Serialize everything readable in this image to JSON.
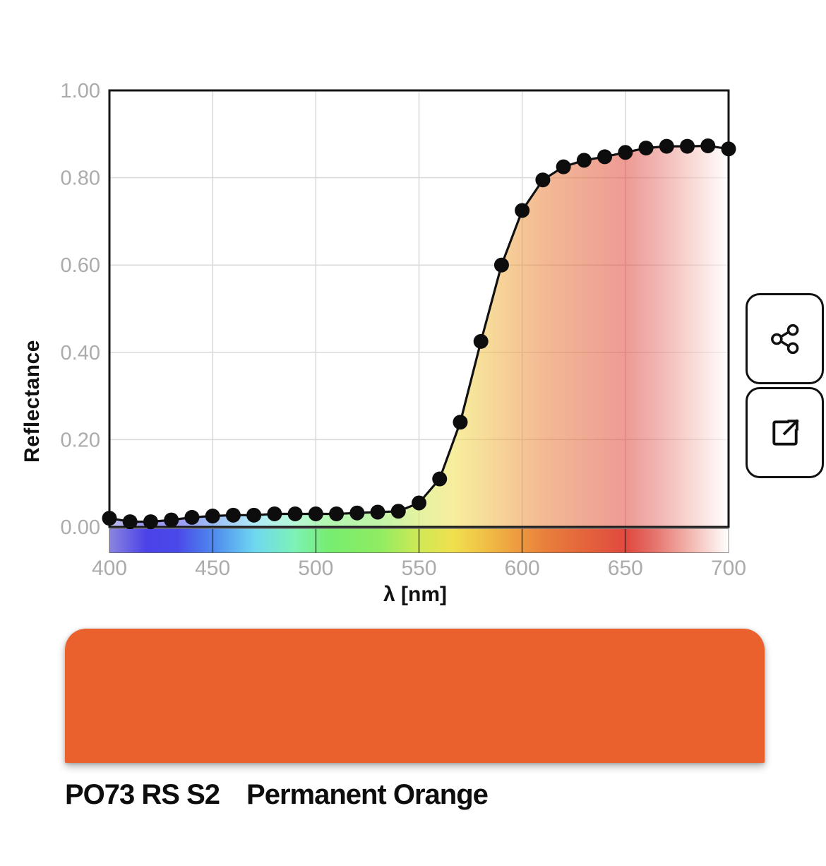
{
  "figure": {
    "ylabel": "Reflectance",
    "xlabel": "λ [nm]"
  },
  "chart_data": {
    "type": "line",
    "title": "",
    "xlabel": "λ [nm]",
    "ylabel": "Reflectance",
    "xlim": [
      400,
      700
    ],
    "ylim": [
      0,
      1
    ],
    "grid": true,
    "legend": "none",
    "x_ticks": [
      400,
      450,
      500,
      550,
      600,
      650,
      700
    ],
    "y_ticks": [
      "0.00",
      "0.20",
      "0.40",
      "0.60",
      "0.80",
      "1.00"
    ],
    "x": [
      400,
      410,
      420,
      430,
      440,
      450,
      460,
      470,
      480,
      490,
      500,
      510,
      520,
      530,
      540,
      550,
      560,
      570,
      580,
      590,
      600,
      610,
      620,
      630,
      640,
      650,
      660,
      670,
      680,
      690,
      700
    ],
    "y": [
      0.02,
      0.012,
      0.012,
      0.016,
      0.022,
      0.025,
      0.027,
      0.027,
      0.03,
      0.03,
      0.03,
      0.03,
      0.032,
      0.034,
      0.036,
      0.055,
      0.11,
      0.24,
      0.425,
      0.6,
      0.725,
      0.795,
      0.825,
      0.84,
      0.848,
      0.858,
      0.868,
      0.872,
      0.872,
      0.873,
      0.866
    ],
    "line_color": "#111111",
    "marker": "filled-circle",
    "marker_color": "#0d0d0d",
    "area_fill": "visible-spectrum-gradient",
    "area_fill_opacity": 0.55,
    "grid_color": "#d9d9d9",
    "tick_label_color": "#ababab",
    "spectrum_stops": [
      {
        "o": 0.0,
        "c": "#8a85e0"
      },
      {
        "o": 0.06,
        "c": "#4b42e8"
      },
      {
        "o": 0.11,
        "c": "#4a49e8"
      },
      {
        "o": 0.17,
        "c": "#4f8cee"
      },
      {
        "o": 0.235,
        "c": "#6fd8f0"
      },
      {
        "o": 0.3,
        "c": "#7df2b5"
      },
      {
        "o": 0.355,
        "c": "#77ed70"
      },
      {
        "o": 0.435,
        "c": "#8fec62"
      },
      {
        "o": 0.5,
        "c": "#cfe955"
      },
      {
        "o": 0.555,
        "c": "#f0e04e"
      },
      {
        "o": 0.6,
        "c": "#f0c447"
      },
      {
        "o": 0.655,
        "c": "#ee9e40"
      },
      {
        "o": 0.705,
        "c": "#e87f3c"
      },
      {
        "o": 0.77,
        "c": "#e4633c"
      },
      {
        "o": 0.835,
        "c": "#e0493f"
      },
      {
        "o": 0.88,
        "c": "#e4736c"
      },
      {
        "o": 0.935,
        "c": "#f2b3ac"
      },
      {
        "o": 1.0,
        "c": "#ffffff"
      }
    ]
  },
  "icons": {
    "share": "share-nodes",
    "open_external": "external-link"
  },
  "swatch": {
    "color": "#EB612D",
    "code": "PO73 RS S2",
    "name": "Permanent Orange"
  }
}
